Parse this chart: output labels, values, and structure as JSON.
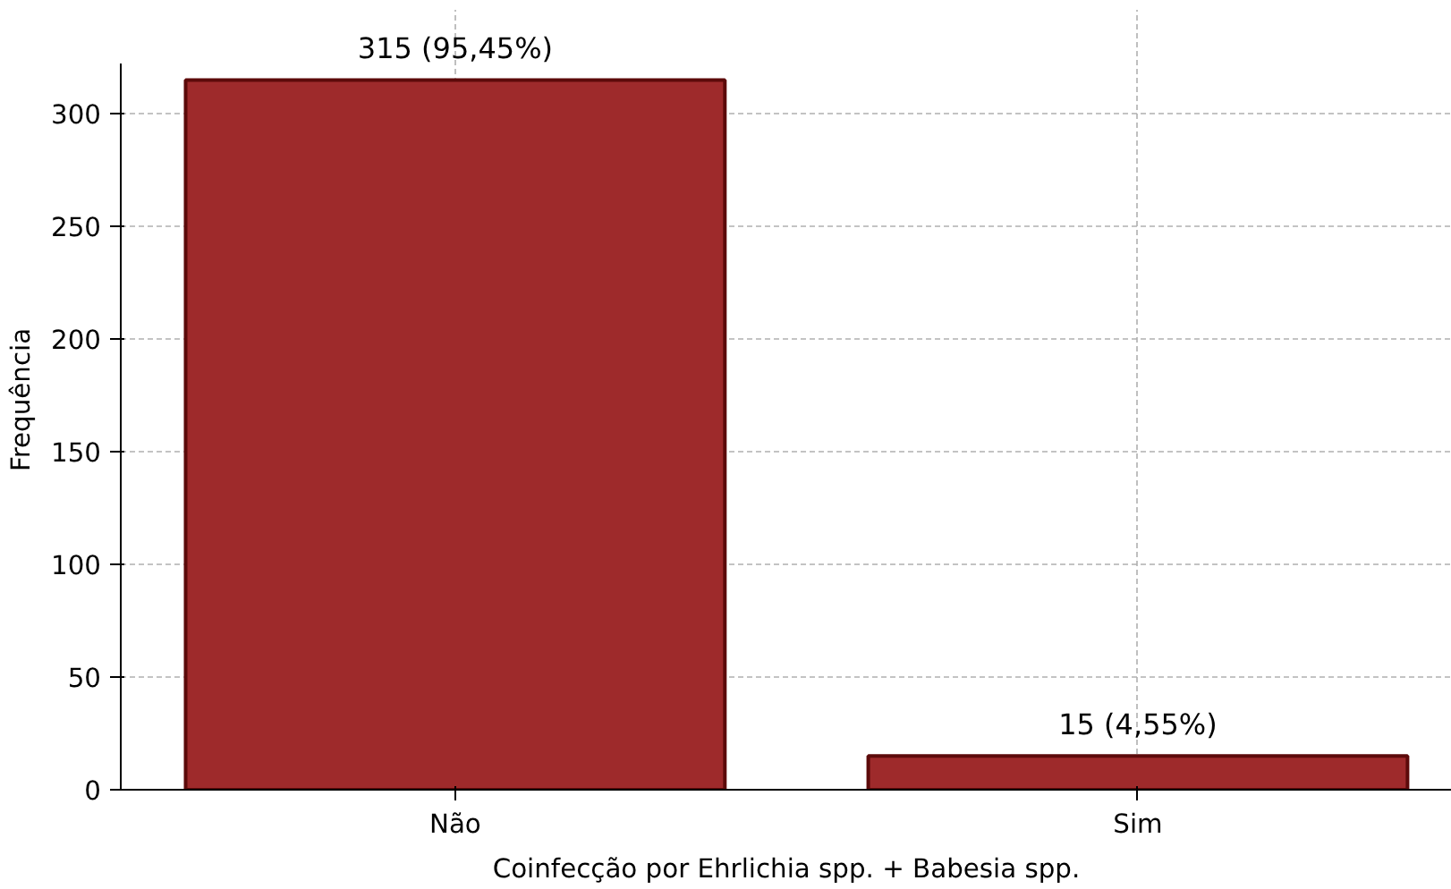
{
  "chart_data": {
    "type": "bar",
    "categories": [
      "Não",
      "Sim"
    ],
    "values": [
      315,
      15
    ],
    "value_labels": [
      "315 (95,45%)",
      "15 (4,55%)"
    ],
    "color": "#9e2a2b",
    "xlabel": "Coinfecção por Ehrlichia spp. + Babesia spp.",
    "ylabel": "Frequência",
    "ylim": [
      0,
      322
    ],
    "yticks": [
      0,
      50,
      100,
      150,
      200,
      250,
      300
    ],
    "grid": true
  }
}
